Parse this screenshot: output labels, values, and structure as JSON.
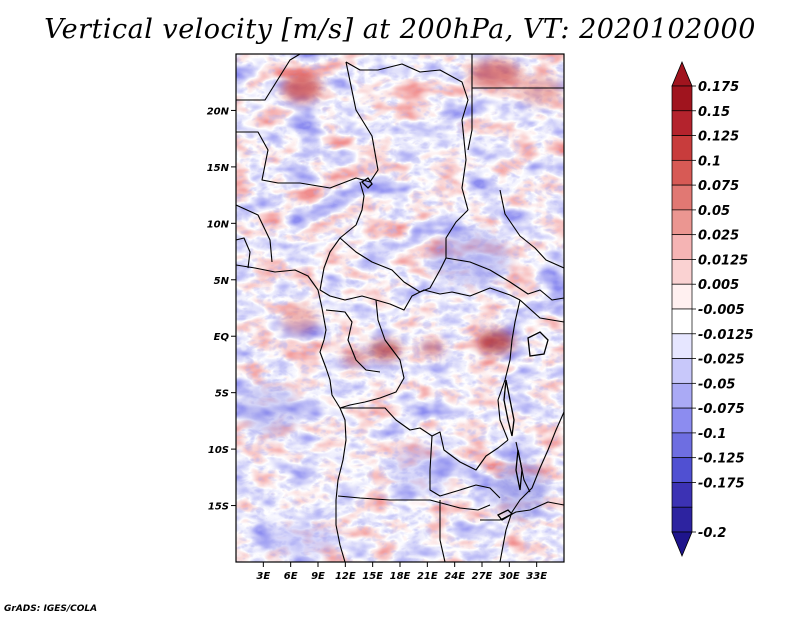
{
  "title": "Vertical velocity [m/s] at 200hPa, VT: 2020102000",
  "footer": "GrADS: IGES/COLA",
  "map": {
    "lon_range": [
      0,
      36
    ],
    "lat_range": [
      -20,
      25
    ],
    "lat_ticks": [
      {
        "value": 20,
        "label": "20N"
      },
      {
        "value": 15,
        "label": "15N"
      },
      {
        "value": 10,
        "label": "10N"
      },
      {
        "value": 5,
        "label": "5N"
      },
      {
        "value": 0,
        "label": "EQ"
      },
      {
        "value": -5,
        "label": "5S"
      },
      {
        "value": -10,
        "label": "10S"
      },
      {
        "value": -15,
        "label": "15S"
      }
    ],
    "lon_ticks": [
      {
        "value": 3,
        "label": "3E"
      },
      {
        "value": 6,
        "label": "6E"
      },
      {
        "value": 9,
        "label": "9E"
      },
      {
        "value": 12,
        "label": "12E"
      },
      {
        "value": 15,
        "label": "15E"
      },
      {
        "value": 18,
        "label": "18E"
      },
      {
        "value": 21,
        "label": "21E"
      },
      {
        "value": 24,
        "label": "24E"
      },
      {
        "value": 27,
        "label": "27E"
      },
      {
        "value": 30,
        "label": "30E"
      },
      {
        "value": 33,
        "label": "33E"
      }
    ]
  },
  "colorbar": {
    "top_arrow_color": "#a0141e",
    "bottom_arrow_color": "#1e148c",
    "levels": [
      {
        "label": "0.175",
        "color": "#a0141e"
      },
      {
        "label": "0.15",
        "color": "#b4232d"
      },
      {
        "label": "0.125",
        "color": "#c83c3c"
      },
      {
        "label": "0.1",
        "color": "#d75a55"
      },
      {
        "label": "0.075",
        "color": "#e17873"
      },
      {
        "label": "0.05",
        "color": "#eb9691"
      },
      {
        "label": "0.025",
        "color": "#f5b4b4"
      },
      {
        "label": "0.0125",
        "color": "#fad2d2"
      },
      {
        "label": "0.005",
        "color": "#fff0f0"
      },
      {
        "label": "-0.005",
        "color": "#ffffff"
      },
      {
        "label": "-0.0125",
        "color": "#e6e6ff"
      },
      {
        "label": "-0.025",
        "color": "#c8c8fa"
      },
      {
        "label": "-0.05",
        "color": "#aaaaf5"
      },
      {
        "label": "-0.075",
        "color": "#8c8cf0"
      },
      {
        "label": "-0.1",
        "color": "#6e6ee1"
      },
      {
        "label": "-0.125",
        "color": "#5050d2"
      },
      {
        "label": "-0.175",
        "color": "#3c32b4"
      },
      {
        "label": "-0.2",
        "color": "#2d23a0"
      }
    ]
  }
}
